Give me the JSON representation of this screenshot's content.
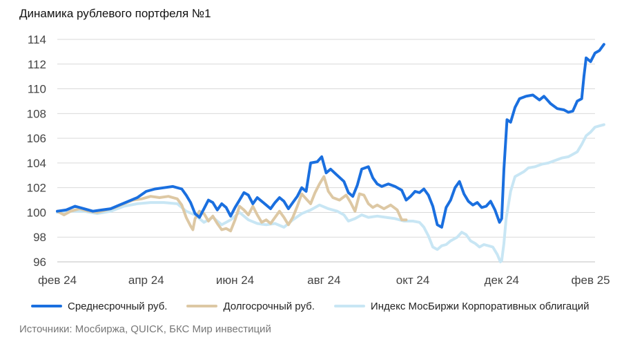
{
  "chart_data": {
    "type": "line",
    "title": "Динамика рублевого портфеля №1",
    "source": "Источники: Мосбиржа, QUICK, БКС Мир инвестиций",
    "ylim": [
      96,
      114
    ],
    "yticks": [
      96,
      98,
      100,
      102,
      104,
      106,
      108,
      110,
      112,
      114
    ],
    "xlim": [
      0,
      12.1
    ],
    "xticks": [
      {
        "x": 0,
        "label": "фев  24"
      },
      {
        "x": 2,
        "label": "апр  24"
      },
      {
        "x": 4,
        "label": "июн  24"
      },
      {
        "x": 6,
        "label": "авг  24"
      },
      {
        "x": 8,
        "label": "окт  24"
      },
      {
        "x": 10,
        "label": "дек  24"
      },
      {
        "x": 12,
        "label": "фев  25"
      }
    ],
    "series": [
      {
        "name": "Среднесрочный руб.",
        "color": "#1a6fdf",
        "width": 4,
        "points": [
          [
            0,
            100.1
          ],
          [
            0.2,
            100.2
          ],
          [
            0.4,
            100.5
          ],
          [
            0.6,
            100.3
          ],
          [
            0.8,
            100.1
          ],
          [
            1.0,
            100.2
          ],
          [
            1.2,
            100.3
          ],
          [
            1.4,
            100.6
          ],
          [
            1.6,
            100.9
          ],
          [
            1.8,
            101.2
          ],
          [
            2.0,
            101.7
          ],
          [
            2.2,
            101.9
          ],
          [
            2.4,
            102.0
          ],
          [
            2.6,
            102.1
          ],
          [
            2.8,
            101.9
          ],
          [
            2.9,
            101.4
          ],
          [
            3.0,
            100.8
          ],
          [
            3.1,
            99.9
          ],
          [
            3.2,
            99.6
          ],
          [
            3.3,
            100.3
          ],
          [
            3.4,
            101.0
          ],
          [
            3.5,
            100.8
          ],
          [
            3.6,
            100.2
          ],
          [
            3.7,
            100.7
          ],
          [
            3.8,
            100.4
          ],
          [
            3.9,
            99.7
          ],
          [
            4.0,
            100.4
          ],
          [
            4.1,
            101.0
          ],
          [
            4.2,
            101.6
          ],
          [
            4.3,
            101.4
          ],
          [
            4.4,
            100.7
          ],
          [
            4.5,
            101.2
          ],
          [
            4.6,
            100.9
          ],
          [
            4.7,
            100.6
          ],
          [
            4.8,
            100.3
          ],
          [
            4.9,
            100.8
          ],
          [
            5.0,
            101.2
          ],
          [
            5.1,
            100.9
          ],
          [
            5.2,
            100.3
          ],
          [
            5.3,
            100.8
          ],
          [
            5.4,
            101.3
          ],
          [
            5.5,
            102.0
          ],
          [
            5.6,
            101.7
          ],
          [
            5.7,
            104.0
          ],
          [
            5.85,
            104.1
          ],
          [
            5.95,
            104.5
          ],
          [
            6.05,
            103.2
          ],
          [
            6.15,
            103.5
          ],
          [
            6.3,
            103.0
          ],
          [
            6.45,
            102.5
          ],
          [
            6.55,
            101.6
          ],
          [
            6.65,
            101.3
          ],
          [
            6.75,
            102.2
          ],
          [
            6.85,
            103.5
          ],
          [
            7.0,
            103.7
          ],
          [
            7.1,
            102.8
          ],
          [
            7.2,
            102.3
          ],
          [
            7.3,
            102.1
          ],
          [
            7.45,
            102.3
          ],
          [
            7.6,
            102.1
          ],
          [
            7.75,
            101.8
          ],
          [
            7.85,
            101.0
          ],
          [
            7.95,
            101.3
          ],
          [
            8.05,
            101.7
          ],
          [
            8.15,
            101.6
          ],
          [
            8.25,
            101.9
          ],
          [
            8.35,
            101.4
          ],
          [
            8.45,
            100.5
          ],
          [
            8.55,
            99.0
          ],
          [
            8.65,
            98.8
          ],
          [
            8.75,
            100.4
          ],
          [
            8.85,
            101.0
          ],
          [
            8.95,
            102.0
          ],
          [
            9.05,
            102.5
          ],
          [
            9.15,
            101.5
          ],
          [
            9.25,
            100.9
          ],
          [
            9.35,
            100.6
          ],
          [
            9.45,
            100.8
          ],
          [
            9.55,
            100.4
          ],
          [
            9.65,
            100.5
          ],
          [
            9.75,
            100.9
          ],
          [
            9.85,
            100.2
          ],
          [
            9.95,
            99.2
          ],
          [
            10.0,
            99.5
          ],
          [
            10.05,
            103.5
          ],
          [
            10.12,
            107.5
          ],
          [
            10.2,
            107.3
          ],
          [
            10.3,
            108.5
          ],
          [
            10.4,
            109.2
          ],
          [
            10.55,
            109.4
          ],
          [
            10.7,
            109.5
          ],
          [
            10.85,
            109.1
          ],
          [
            10.95,
            109.4
          ],
          [
            11.1,
            108.8
          ],
          [
            11.25,
            108.4
          ],
          [
            11.4,
            108.3
          ],
          [
            11.5,
            108.1
          ],
          [
            11.6,
            108.2
          ],
          [
            11.7,
            109.0
          ],
          [
            11.8,
            109.2
          ],
          [
            11.85,
            111.0
          ],
          [
            11.9,
            112.5
          ],
          [
            12.0,
            112.2
          ],
          [
            12.1,
            112.9
          ],
          [
            12.2,
            113.1
          ],
          [
            12.3,
            113.6
          ]
        ]
      },
      {
        "name": "Долгосрочный руб.",
        "color": "#ddc8a4",
        "width": 4,
        "points": [
          [
            0,
            100.1
          ],
          [
            0.15,
            99.8
          ],
          [
            0.3,
            100.1
          ],
          [
            0.5,
            100.3
          ],
          [
            0.7,
            100.1
          ],
          [
            0.9,
            100.0
          ],
          [
            1.1,
            100.2
          ],
          [
            1.3,
            100.4
          ],
          [
            1.5,
            100.7
          ],
          [
            1.7,
            101.0
          ],
          [
            1.9,
            101.1
          ],
          [
            2.1,
            101.3
          ],
          [
            2.3,
            101.2
          ],
          [
            2.5,
            101.3
          ],
          [
            2.7,
            101.1
          ],
          [
            2.8,
            100.6
          ],
          [
            2.9,
            99.6
          ],
          [
            3.0,
            98.9
          ],
          [
            3.05,
            98.6
          ],
          [
            3.1,
            99.5
          ],
          [
            3.2,
            100.1
          ],
          [
            3.3,
            99.9
          ],
          [
            3.4,
            99.3
          ],
          [
            3.5,
            99.7
          ],
          [
            3.6,
            99.1
          ],
          [
            3.7,
            98.6
          ],
          [
            3.8,
            98.7
          ],
          [
            3.9,
            98.5
          ],
          [
            4.0,
            99.4
          ],
          [
            4.1,
            100.5
          ],
          [
            4.2,
            100.2
          ],
          [
            4.3,
            99.8
          ],
          [
            4.4,
            100.5
          ],
          [
            4.5,
            99.8
          ],
          [
            4.6,
            99.2
          ],
          [
            4.7,
            99.4
          ],
          [
            4.8,
            99.1
          ],
          [
            4.9,
            99.6
          ],
          [
            5.0,
            100.1
          ],
          [
            5.1,
            99.6
          ],
          [
            5.2,
            99.0
          ],
          [
            5.3,
            99.6
          ],
          [
            5.4,
            100.5
          ],
          [
            5.5,
            101.5
          ],
          [
            5.6,
            101.1
          ],
          [
            5.7,
            100.7
          ],
          [
            5.8,
            101.6
          ],
          [
            5.9,
            102.3
          ],
          [
            6.0,
            102.9
          ],
          [
            6.1,
            101.7
          ],
          [
            6.2,
            101.2
          ],
          [
            6.35,
            101.0
          ],
          [
            6.5,
            101.4
          ],
          [
            6.6,
            100.8
          ],
          [
            6.7,
            100.1
          ],
          [
            6.8,
            101.5
          ],
          [
            6.9,
            101.4
          ],
          [
            7.0,
            100.7
          ],
          [
            7.1,
            100.4
          ],
          [
            7.2,
            100.6
          ],
          [
            7.35,
            100.3
          ],
          [
            7.5,
            100.6
          ],
          [
            7.65,
            100.2
          ],
          [
            7.75,
            99.4
          ],
          [
            7.85,
            99.4
          ]
        ]
      },
      {
        "name": "Индекс МосБиржи Корпоративных облигаций",
        "color": "#c8e6f4",
        "width": 4,
        "points": [
          [
            0,
            100.0
          ],
          [
            0.3,
            100.1
          ],
          [
            0.6,
            100.1
          ],
          [
            0.9,
            99.9
          ],
          [
            1.2,
            100.1
          ],
          [
            1.5,
            100.5
          ],
          [
            1.8,
            100.7
          ],
          [
            2.1,
            100.8
          ],
          [
            2.4,
            100.8
          ],
          [
            2.7,
            100.7
          ],
          [
            2.9,
            100.1
          ],
          [
            3.1,
            99.8
          ],
          [
            3.3,
            99.2
          ],
          [
            3.5,
            99.6
          ],
          [
            3.7,
            99.0
          ],
          [
            3.9,
            99.4
          ],
          [
            4.1,
            100.0
          ],
          [
            4.3,
            99.4
          ],
          [
            4.5,
            99.1
          ],
          [
            4.7,
            99.0
          ],
          [
            4.9,
            99.1
          ],
          [
            5.1,
            98.8
          ],
          [
            5.3,
            99.4
          ],
          [
            5.5,
            99.9
          ],
          [
            5.7,
            100.2
          ],
          [
            5.9,
            100.6
          ],
          [
            6.1,
            100.3
          ],
          [
            6.3,
            100.1
          ],
          [
            6.45,
            99.8
          ],
          [
            6.55,
            99.3
          ],
          [
            6.7,
            99.5
          ],
          [
            6.85,
            99.8
          ],
          [
            7.0,
            99.6
          ],
          [
            7.2,
            99.7
          ],
          [
            7.4,
            99.6
          ],
          [
            7.6,
            99.5
          ],
          [
            7.8,
            99.3
          ],
          [
            8.0,
            99.3
          ],
          [
            8.15,
            99.2
          ],
          [
            8.25,
            98.8
          ],
          [
            8.35,
            98.1
          ],
          [
            8.45,
            97.2
          ],
          [
            8.55,
            97.0
          ],
          [
            8.65,
            97.3
          ],
          [
            8.75,
            97.4
          ],
          [
            8.85,
            97.7
          ],
          [
            9.0,
            98.0
          ],
          [
            9.1,
            98.4
          ],
          [
            9.2,
            98.2
          ],
          [
            9.3,
            97.7
          ],
          [
            9.4,
            97.5
          ],
          [
            9.5,
            97.2
          ],
          [
            9.6,
            97.4
          ],
          [
            9.7,
            97.3
          ],
          [
            9.8,
            97.2
          ],
          [
            9.9,
            96.6
          ],
          [
            9.97,
            96.0
          ],
          [
            10.0,
            96.1
          ],
          [
            10.05,
            97.5
          ],
          [
            10.1,
            99.5
          ],
          [
            10.2,
            101.7
          ],
          [
            10.3,
            102.9
          ],
          [
            10.4,
            103.1
          ],
          [
            10.5,
            103.3
          ],
          [
            10.6,
            103.6
          ],
          [
            10.75,
            103.7
          ],
          [
            10.9,
            103.9
          ],
          [
            11.05,
            104.0
          ],
          [
            11.2,
            104.2
          ],
          [
            11.35,
            104.4
          ],
          [
            11.5,
            104.5
          ],
          [
            11.6,
            104.7
          ],
          [
            11.7,
            104.9
          ],
          [
            11.8,
            105.5
          ],
          [
            11.9,
            106.2
          ],
          [
            12.0,
            106.5
          ],
          [
            12.1,
            106.9
          ],
          [
            12.2,
            107.0
          ],
          [
            12.3,
            107.1
          ]
        ]
      }
    ]
  }
}
